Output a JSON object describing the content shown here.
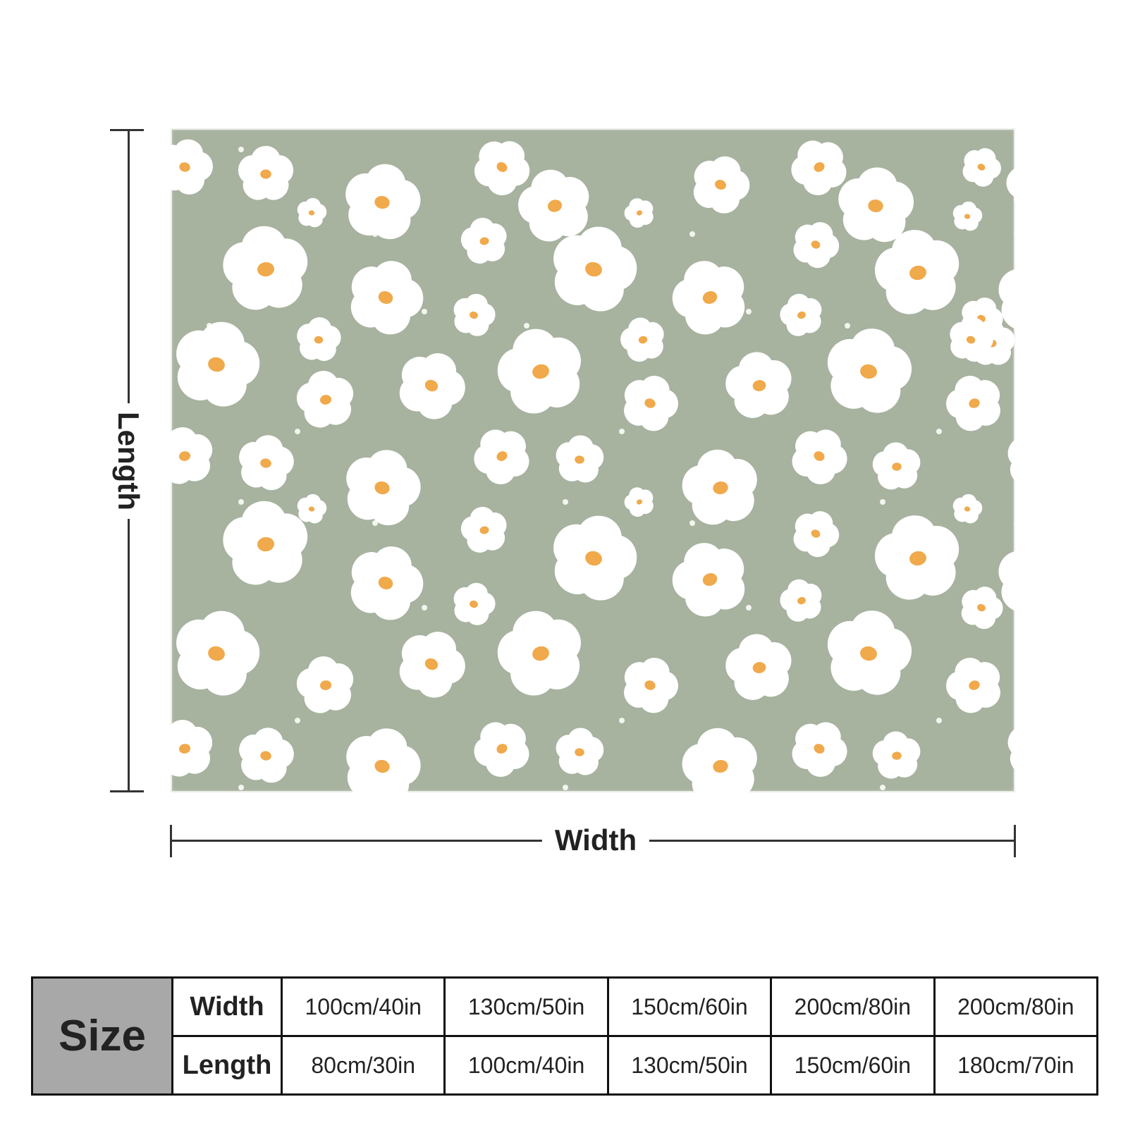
{
  "labels": {
    "length": "Length",
    "width": "Width"
  },
  "colors": {
    "blanket_background": "#a7b29f",
    "petal": "#ffffff",
    "flower_center": "#f0a94b",
    "dot": "#f3f6ef",
    "size_header_bg": "#a8a8a8"
  },
  "size_table": {
    "title": "Size",
    "row_labels": [
      "Width",
      "Length"
    ],
    "widths": [
      "100cm/40in",
      "130cm/50in",
      "150cm/60in",
      "200cm/80in",
      "200cm/80in"
    ],
    "lengths": [
      "80cm/30in",
      "100cm/40in",
      "130cm/50in",
      "150cm/60in",
      "180cm/70in"
    ]
  }
}
